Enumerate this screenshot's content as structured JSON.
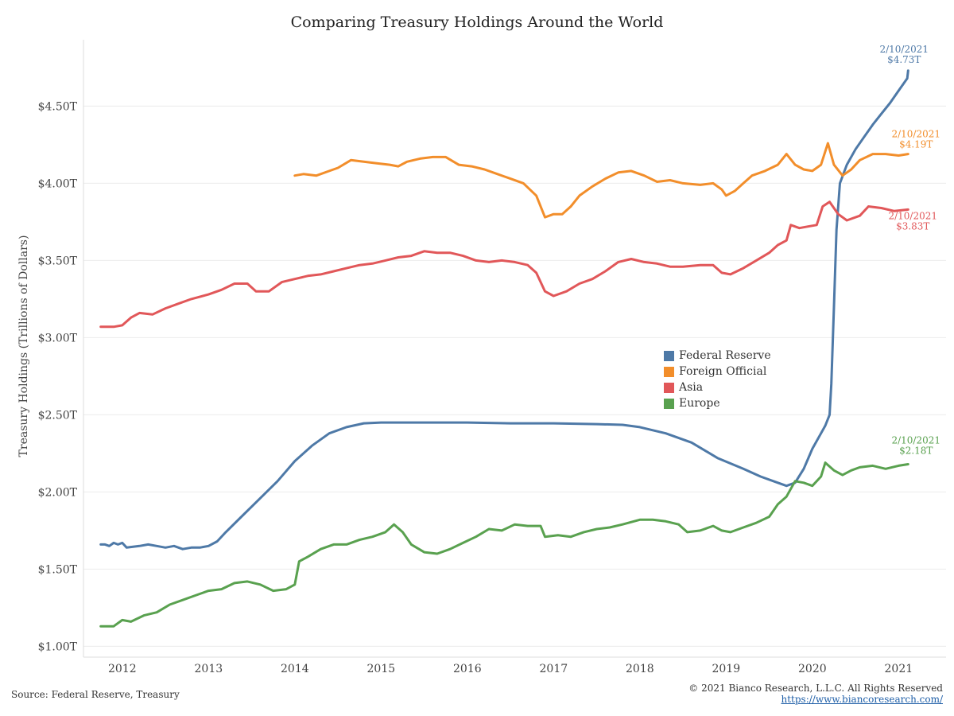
{
  "chart_data": {
    "type": "line",
    "title": "Comparing Treasury Holdings Around the World",
    "xlabel": "",
    "ylabel": "Treasury Holdings (Trillions of Dollars)",
    "xlim": [
      2011.55,
      2021.55
    ],
    "ylim": [
      0.93,
      4.93
    ],
    "x_ticks": [
      2012,
      2013,
      2014,
      2015,
      2016,
      2017,
      2018,
      2019,
      2020,
      2021
    ],
    "y_ticks": [
      {
        "value": 1.0,
        "label": "$1.00T"
      },
      {
        "value": 1.5,
        "label": "$1.50T"
      },
      {
        "value": 2.0,
        "label": "$2.00T"
      },
      {
        "value": 2.5,
        "label": "$2.50T"
      },
      {
        "value": 3.0,
        "label": "$3.00T"
      },
      {
        "value": 3.5,
        "label": "$3.50T"
      },
      {
        "value": 4.0,
        "label": "$4.00T"
      },
      {
        "value": 4.5,
        "label": "$4.50T"
      }
    ],
    "grid": "horizontal",
    "legend_position": "center-right",
    "series": [
      {
        "name": "Federal Reserve",
        "color": "#4e79a7",
        "points": [
          [
            2011.75,
            1.66
          ],
          [
            2011.8,
            1.66
          ],
          [
            2011.85,
            1.65
          ],
          [
            2011.9,
            1.67
          ],
          [
            2011.95,
            1.66
          ],
          [
            2012.0,
            1.67
          ],
          [
            2012.05,
            1.64
          ],
          [
            2012.2,
            1.65
          ],
          [
            2012.3,
            1.66
          ],
          [
            2012.4,
            1.65
          ],
          [
            2012.5,
            1.64
          ],
          [
            2012.6,
            1.65
          ],
          [
            2012.7,
            1.63
          ],
          [
            2012.8,
            1.64
          ],
          [
            2012.9,
            1.64
          ],
          [
            2013.0,
            1.65
          ],
          [
            2013.1,
            1.68
          ],
          [
            2013.2,
            1.74
          ],
          [
            2013.4,
            1.85
          ],
          [
            2013.6,
            1.96
          ],
          [
            2013.8,
            2.07
          ],
          [
            2014.0,
            2.2
          ],
          [
            2014.2,
            2.3
          ],
          [
            2014.4,
            2.38
          ],
          [
            2014.6,
            2.42
          ],
          [
            2014.8,
            2.445
          ],
          [
            2015.0,
            2.45
          ],
          [
            2015.5,
            2.45
          ],
          [
            2016.0,
            2.45
          ],
          [
            2016.5,
            2.445
          ],
          [
            2017.0,
            2.445
          ],
          [
            2017.5,
            2.44
          ],
          [
            2017.8,
            2.435
          ],
          [
            2018.0,
            2.42
          ],
          [
            2018.3,
            2.38
          ],
          [
            2018.6,
            2.32
          ],
          [
            2018.9,
            2.22
          ],
          [
            2019.2,
            2.15
          ],
          [
            2019.4,
            2.1
          ],
          [
            2019.6,
            2.06
          ],
          [
            2019.7,
            2.04
          ],
          [
            2019.8,
            2.06
          ],
          [
            2019.9,
            2.15
          ],
          [
            2020.0,
            2.28
          ],
          [
            2020.1,
            2.38
          ],
          [
            2020.15,
            2.43
          ],
          [
            2020.2,
            2.5
          ],
          [
            2020.22,
            2.7
          ],
          [
            2020.25,
            3.2
          ],
          [
            2020.28,
            3.7
          ],
          [
            2020.32,
            4.0
          ],
          [
            2020.4,
            4.12
          ],
          [
            2020.5,
            4.22
          ],
          [
            2020.6,
            4.3
          ],
          [
            2020.7,
            4.38
          ],
          [
            2020.8,
            4.45
          ],
          [
            2020.9,
            4.52
          ],
          [
            2021.0,
            4.6
          ],
          [
            2021.1,
            4.68
          ],
          [
            2021.11,
            4.73
          ]
        ]
      },
      {
        "name": "Foreign Official",
        "color": "#f28e2b",
        "points": [
          [
            2014.0,
            4.05
          ],
          [
            2014.1,
            4.06
          ],
          [
            2014.25,
            4.05
          ],
          [
            2014.4,
            4.08
          ],
          [
            2014.5,
            4.1
          ],
          [
            2014.65,
            4.15
          ],
          [
            2014.8,
            4.14
          ],
          [
            2014.95,
            4.13
          ],
          [
            2015.1,
            4.12
          ],
          [
            2015.2,
            4.11
          ],
          [
            2015.3,
            4.14
          ],
          [
            2015.45,
            4.16
          ],
          [
            2015.6,
            4.17
          ],
          [
            2015.75,
            4.17
          ],
          [
            2015.9,
            4.12
          ],
          [
            2016.05,
            4.11
          ],
          [
            2016.2,
            4.09
          ],
          [
            2016.35,
            4.06
          ],
          [
            2016.5,
            4.03
          ],
          [
            2016.65,
            4.0
          ],
          [
            2016.8,
            3.92
          ],
          [
            2016.9,
            3.78
          ],
          [
            2017.0,
            3.8
          ],
          [
            2017.1,
            3.8
          ],
          [
            2017.2,
            3.85
          ],
          [
            2017.3,
            3.92
          ],
          [
            2017.45,
            3.98
          ],
          [
            2017.6,
            4.03
          ],
          [
            2017.75,
            4.07
          ],
          [
            2017.9,
            4.08
          ],
          [
            2018.05,
            4.05
          ],
          [
            2018.2,
            4.01
          ],
          [
            2018.35,
            4.02
          ],
          [
            2018.5,
            4.0
          ],
          [
            2018.7,
            3.99
          ],
          [
            2018.85,
            4.0
          ],
          [
            2018.95,
            3.96
          ],
          [
            2019.0,
            3.92
          ],
          [
            2019.1,
            3.95
          ],
          [
            2019.2,
            4.0
          ],
          [
            2019.3,
            4.05
          ],
          [
            2019.45,
            4.08
          ],
          [
            2019.6,
            4.12
          ],
          [
            2019.7,
            4.19
          ],
          [
            2019.8,
            4.12
          ],
          [
            2019.9,
            4.09
          ],
          [
            2020.0,
            4.08
          ],
          [
            2020.1,
            4.12
          ],
          [
            2020.18,
            4.26
          ],
          [
            2020.25,
            4.12
          ],
          [
            2020.35,
            4.05
          ],
          [
            2020.45,
            4.09
          ],
          [
            2020.55,
            4.15
          ],
          [
            2020.7,
            4.19
          ],
          [
            2020.85,
            4.19
          ],
          [
            2021.0,
            4.18
          ],
          [
            2021.11,
            4.19
          ]
        ]
      },
      {
        "name": "Asia",
        "color": "#e15759",
        "points": [
          [
            2011.75,
            3.07
          ],
          [
            2011.9,
            3.07
          ],
          [
            2012.0,
            3.08
          ],
          [
            2012.1,
            3.13
          ],
          [
            2012.2,
            3.16
          ],
          [
            2012.35,
            3.15
          ],
          [
            2012.5,
            3.19
          ],
          [
            2012.65,
            3.22
          ],
          [
            2012.8,
            3.25
          ],
          [
            2013.0,
            3.28
          ],
          [
            2013.15,
            3.31
          ],
          [
            2013.3,
            3.35
          ],
          [
            2013.45,
            3.35
          ],
          [
            2013.55,
            3.3
          ],
          [
            2013.7,
            3.3
          ],
          [
            2013.85,
            3.36
          ],
          [
            2014.0,
            3.38
          ],
          [
            2014.15,
            3.4
          ],
          [
            2014.3,
            3.41
          ],
          [
            2014.45,
            3.43
          ],
          [
            2014.6,
            3.45
          ],
          [
            2014.75,
            3.47
          ],
          [
            2014.9,
            3.48
          ],
          [
            2015.05,
            3.5
          ],
          [
            2015.2,
            3.52
          ],
          [
            2015.35,
            3.53
          ],
          [
            2015.5,
            3.56
          ],
          [
            2015.65,
            3.55
          ],
          [
            2015.8,
            3.55
          ],
          [
            2015.95,
            3.53
          ],
          [
            2016.1,
            3.5
          ],
          [
            2016.25,
            3.49
          ],
          [
            2016.4,
            3.5
          ],
          [
            2016.55,
            3.49
          ],
          [
            2016.7,
            3.47
          ],
          [
            2016.8,
            3.42
          ],
          [
            2016.9,
            3.3
          ],
          [
            2017.0,
            3.27
          ],
          [
            2017.15,
            3.3
          ],
          [
            2017.3,
            3.35
          ],
          [
            2017.45,
            3.38
          ],
          [
            2017.6,
            3.43
          ],
          [
            2017.75,
            3.49
          ],
          [
            2017.9,
            3.51
          ],
          [
            2018.05,
            3.49
          ],
          [
            2018.2,
            3.48
          ],
          [
            2018.35,
            3.46
          ],
          [
            2018.5,
            3.46
          ],
          [
            2018.7,
            3.47
          ],
          [
            2018.85,
            3.47
          ],
          [
            2018.95,
            3.42
          ],
          [
            2019.05,
            3.41
          ],
          [
            2019.2,
            3.45
          ],
          [
            2019.35,
            3.5
          ],
          [
            2019.5,
            3.55
          ],
          [
            2019.6,
            3.6
          ],
          [
            2019.7,
            3.63
          ],
          [
            2019.75,
            3.73
          ],
          [
            2019.85,
            3.71
          ],
          [
            2019.95,
            3.72
          ],
          [
            2020.05,
            3.73
          ],
          [
            2020.12,
            3.85
          ],
          [
            2020.2,
            3.88
          ],
          [
            2020.3,
            3.8
          ],
          [
            2020.4,
            3.76
          ],
          [
            2020.55,
            3.79
          ],
          [
            2020.65,
            3.85
          ],
          [
            2020.8,
            3.84
          ],
          [
            2020.95,
            3.82
          ],
          [
            2021.11,
            3.83
          ]
        ]
      },
      {
        "name": "Europe",
        "color": "#59a14f",
        "points": [
          [
            2011.75,
            1.13
          ],
          [
            2011.9,
            1.13
          ],
          [
            2012.0,
            1.17
          ],
          [
            2012.1,
            1.16
          ],
          [
            2012.25,
            1.2
          ],
          [
            2012.4,
            1.22
          ],
          [
            2012.55,
            1.27
          ],
          [
            2012.7,
            1.3
          ],
          [
            2012.85,
            1.33
          ],
          [
            2013.0,
            1.36
          ],
          [
            2013.15,
            1.37
          ],
          [
            2013.3,
            1.41
          ],
          [
            2013.45,
            1.42
          ],
          [
            2013.6,
            1.4
          ],
          [
            2013.75,
            1.36
          ],
          [
            2013.9,
            1.37
          ],
          [
            2014.0,
            1.4
          ],
          [
            2014.05,
            1.55
          ],
          [
            2014.15,
            1.58
          ],
          [
            2014.3,
            1.63
          ],
          [
            2014.45,
            1.66
          ],
          [
            2014.6,
            1.66
          ],
          [
            2014.75,
            1.69
          ],
          [
            2014.9,
            1.71
          ],
          [
            2015.05,
            1.74
          ],
          [
            2015.15,
            1.79
          ],
          [
            2015.25,
            1.74
          ],
          [
            2015.35,
            1.66
          ],
          [
            2015.5,
            1.61
          ],
          [
            2015.65,
            1.6
          ],
          [
            2015.8,
            1.63
          ],
          [
            2015.95,
            1.67
          ],
          [
            2016.1,
            1.71
          ],
          [
            2016.25,
            1.76
          ],
          [
            2016.4,
            1.75
          ],
          [
            2016.55,
            1.79
          ],
          [
            2016.7,
            1.78
          ],
          [
            2016.85,
            1.78
          ],
          [
            2016.9,
            1.71
          ],
          [
            2017.05,
            1.72
          ],
          [
            2017.2,
            1.71
          ],
          [
            2017.35,
            1.74
          ],
          [
            2017.5,
            1.76
          ],
          [
            2017.65,
            1.77
          ],
          [
            2017.8,
            1.79
          ],
          [
            2018.0,
            1.82
          ],
          [
            2018.15,
            1.82
          ],
          [
            2018.3,
            1.81
          ],
          [
            2018.45,
            1.79
          ],
          [
            2018.55,
            1.74
          ],
          [
            2018.7,
            1.75
          ],
          [
            2018.85,
            1.78
          ],
          [
            2018.95,
            1.75
          ],
          [
            2019.05,
            1.74
          ],
          [
            2019.2,
            1.77
          ],
          [
            2019.35,
            1.8
          ],
          [
            2019.5,
            1.84
          ],
          [
            2019.6,
            1.92
          ],
          [
            2019.7,
            1.97
          ],
          [
            2019.8,
            2.07
          ],
          [
            2019.9,
            2.06
          ],
          [
            2020.0,
            2.04
          ],
          [
            2020.1,
            2.1
          ],
          [
            2020.15,
            2.19
          ],
          [
            2020.25,
            2.14
          ],
          [
            2020.35,
            2.11
          ],
          [
            2020.45,
            2.14
          ],
          [
            2020.55,
            2.16
          ],
          [
            2020.7,
            2.17
          ],
          [
            2020.85,
            2.15
          ],
          [
            2021.0,
            2.17
          ],
          [
            2021.11,
            2.18
          ]
        ]
      }
    ],
    "annotations": [
      {
        "series": "Federal Reserve",
        "date": "2/10/2021",
        "value": "$4.73T",
        "x": 2021.11,
        "y": 4.73
      },
      {
        "series": "Foreign Official",
        "date": "2/10/2021",
        "value": "$4.19T",
        "x": 2021.11,
        "y": 4.19
      },
      {
        "series": "Asia",
        "date": "2/10/2021",
        "value": "$3.83T",
        "x": 2021.11,
        "y": 3.83
      },
      {
        "series": "Europe",
        "date": "2/10/2021",
        "value": "$2.18T",
        "x": 2021.11,
        "y": 2.18
      }
    ]
  },
  "footer": {
    "source": "Source: Federal Reserve, Treasury",
    "copyright": "© 2021 Bianco Research, L.L.C. All Rights Reserved",
    "url": "https://www.biancoresearch.com/"
  }
}
